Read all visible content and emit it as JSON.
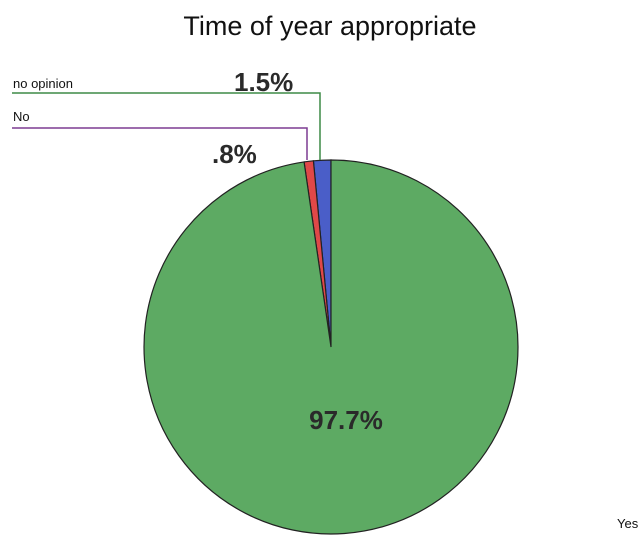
{
  "chart_data": {
    "type": "pie",
    "title": "Time of year appropriate",
    "slices": [
      {
        "label": "no opinion",
        "value": 1.5,
        "value_label": "1.5%",
        "color": "#4a5ec8"
      },
      {
        "label": "No",
        "value": 0.8,
        "value_label": ".8%",
        "color": "#e04848"
      },
      {
        "label": "Yes",
        "value": 97.7,
        "value_label": "97.7%",
        "color": "#5daa63"
      }
    ],
    "start_angle_deg": 0,
    "direction": "counterclockwise",
    "leader_line_colors": {
      "no opinion": "#3d8a46",
      "No": "#7d3c92"
    },
    "legend": "callouts with leader lines"
  }
}
